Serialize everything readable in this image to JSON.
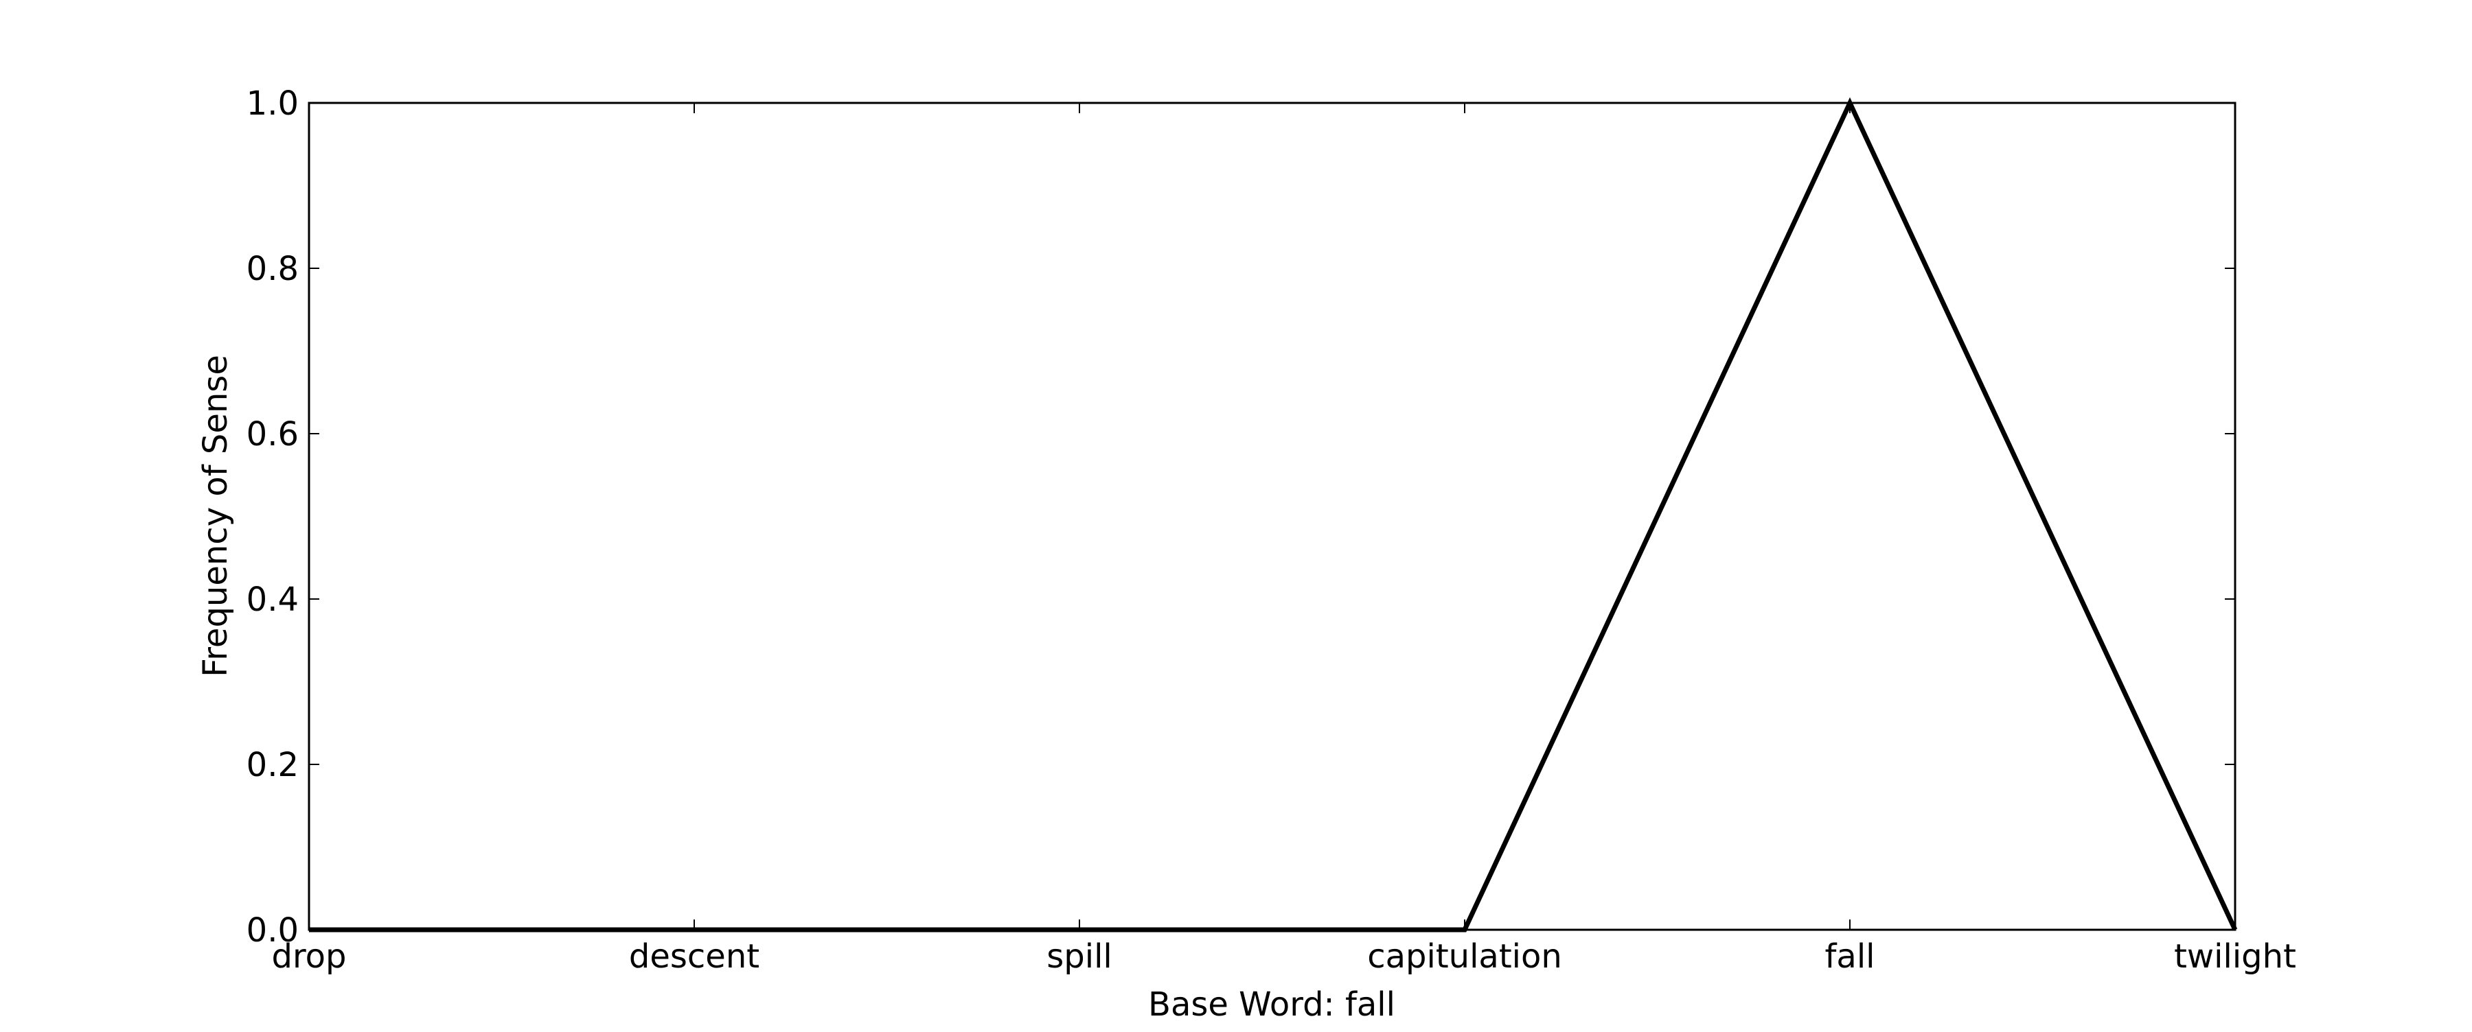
{
  "chart_data": {
    "type": "line",
    "categories": [
      "drop",
      "descent",
      "spill",
      "capitulation",
      "fall",
      "twilight"
    ],
    "series": [
      {
        "values": [
          0.0,
          0.0,
          0.0,
          0.0,
          1.0,
          0.0
        ],
        "color": "#000000"
      }
    ],
    "xlabel": "Base Word: fall",
    "ylabel": "Frequency of Sense",
    "ylim": [
      0.0,
      1.0
    ],
    "yticks": [
      "0.0",
      "0.2",
      "0.4",
      "0.6",
      "0.8",
      "1.0"
    ],
    "grid": false,
    "legend": "none"
  }
}
